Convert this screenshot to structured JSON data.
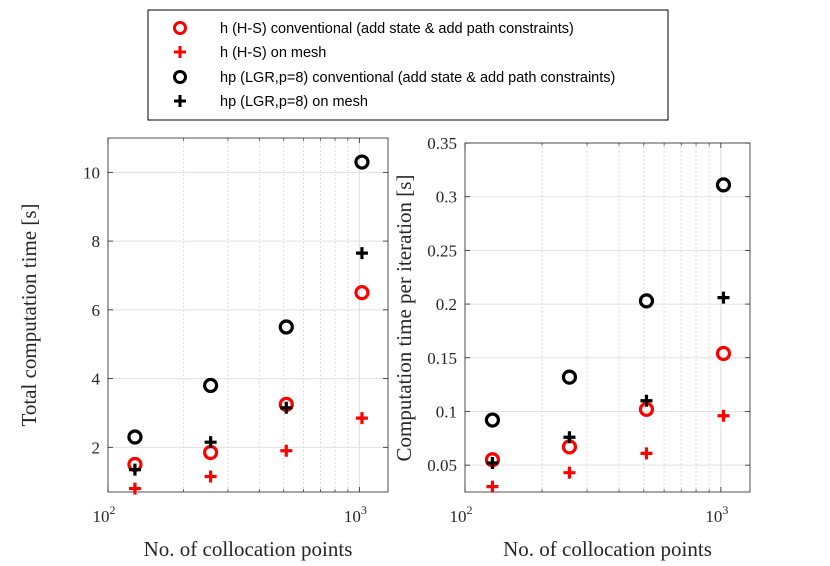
{
  "legend": {
    "entries": [
      {
        "label": "h (H-S) conventional (add state & add path constraints)",
        "marker": "circle",
        "color": "#ff0000"
      },
      {
        "label": "h (H-S) on mesh",
        "marker": "plus",
        "color": "#ff0000"
      },
      {
        "label": "hp (LGR,p=8) conventional (add state & add path constraints)",
        "marker": "circle",
        "color": "#000000"
      },
      {
        "label": "hp (LGR,p=8) on mesh",
        "marker": "plus",
        "color": "#000000"
      }
    ]
  },
  "chart_data": [
    {
      "type": "scatter",
      "title": "",
      "xlabel": "No. of collocation points",
      "ylabel": "Total computation time [s]",
      "xscale": "log",
      "xlim": [
        100,
        1300
      ],
      "ylim": [
        0.7,
        11
      ],
      "xticks": [
        {
          "value": 100,
          "base": "10",
          "exp": "2"
        },
        {
          "value": 1000,
          "base": "10",
          "exp": "3"
        }
      ],
      "yticks": [
        {
          "value": 2,
          "label": "2"
        },
        {
          "value": 4,
          "label": "4"
        },
        {
          "value": 6,
          "label": "6"
        },
        {
          "value": 8,
          "label": "8"
        },
        {
          "value": 10,
          "label": "10"
        }
      ],
      "grid": true,
      "x": [
        128,
        256,
        512,
        1024
      ],
      "series": [
        {
          "name": "h (H-S) conventional (add state & add path constraints)",
          "marker": "circle",
          "color": "#ff0000",
          "values": [
            1.5,
            1.85,
            3.25,
            6.5
          ]
        },
        {
          "name": "h (H-S) on mesh",
          "marker": "plus",
          "color": "#ff0000",
          "values": [
            0.8,
            1.15,
            1.9,
            2.85
          ]
        },
        {
          "name": "hp (LGR,p=8) conventional (add state & add path constraints)",
          "marker": "circle",
          "color": "#000000",
          "values": [
            2.3,
            3.8,
            5.5,
            10.3
          ]
        },
        {
          "name": "hp (LGR,p=8) on mesh",
          "marker": "plus",
          "color": "#000000",
          "values": [
            1.35,
            2.15,
            3.15,
            7.65
          ]
        }
      ]
    },
    {
      "type": "scatter",
      "title": "",
      "xlabel": "No. of collocation points",
      "ylabel": "Computation time per iteration [s]",
      "xscale": "log",
      "xlim": [
        100,
        1300
      ],
      "ylim": [
        0.025,
        0.35
      ],
      "xticks": [
        {
          "value": 100,
          "base": "10",
          "exp": "2"
        },
        {
          "value": 1000,
          "base": "10",
          "exp": "3"
        }
      ],
      "yticks": [
        {
          "value": 0.05,
          "label": "0.05"
        },
        {
          "value": 0.1,
          "label": "0.1"
        },
        {
          "value": 0.15,
          "label": "0.15"
        },
        {
          "value": 0.2,
          "label": "0.2"
        },
        {
          "value": 0.25,
          "label": "0.25"
        },
        {
          "value": 0.3,
          "label": "0.3"
        },
        {
          "value": 0.35,
          "label": "0.35"
        }
      ],
      "grid": true,
      "x": [
        128,
        256,
        512,
        1024
      ],
      "series": [
        {
          "name": "h (H-S) conventional (add state & add path constraints)",
          "marker": "circle",
          "color": "#ff0000",
          "values": [
            0.055,
            0.067,
            0.102,
            0.154
          ]
        },
        {
          "name": "h (H-S) on mesh",
          "marker": "plus",
          "color": "#ff0000",
          "values": [
            0.03,
            0.043,
            0.061,
            0.096
          ]
        },
        {
          "name": "hp (LGR,p=8) conventional (add state & add path constraints)",
          "marker": "circle",
          "color": "#000000",
          "values": [
            0.092,
            0.132,
            0.203,
            0.311
          ]
        },
        {
          "name": "hp (LGR,p=8) on mesh",
          "marker": "plus",
          "color": "#000000",
          "values": [
            0.052,
            0.076,
            0.11,
            0.206
          ]
        }
      ]
    }
  ]
}
